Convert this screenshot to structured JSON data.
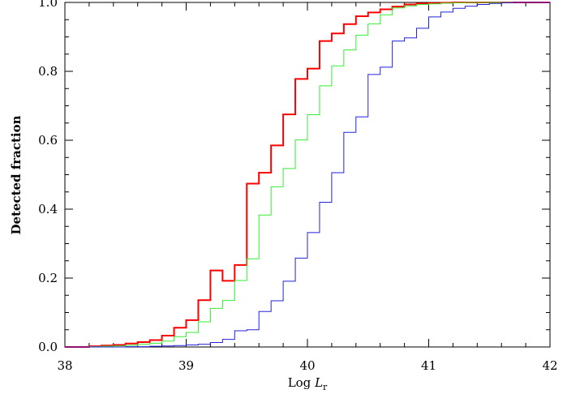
{
  "chart_data": {
    "type": "line",
    "step": true,
    "xlabel": "Log L",
    "xlabel_subscript": "r",
    "ylabel": "Detected fraction",
    "xlim": [
      38,
      42
    ],
    "ylim": [
      0,
      1
    ],
    "xticks": [
      38,
      39,
      40,
      41,
      42
    ],
    "xtick_labels": [
      "38",
      "39",
      "40",
      "41",
      "42"
    ],
    "yticks": [
      0,
      0.2,
      0.4,
      0.6,
      0.8,
      1.0
    ],
    "ytick_labels": [
      "0.0",
      "0.2",
      "0.4",
      "0.6",
      "0.8",
      "1.0"
    ],
    "grid": false,
    "bin_edges": [
      38.0,
      38.1,
      38.2,
      38.3,
      38.4,
      38.5,
      38.6,
      38.7,
      38.8,
      38.9,
      39.0,
      39.1,
      39.2,
      39.3,
      39.4,
      39.5,
      39.6,
      39.7,
      39.8,
      39.9,
      40.0,
      40.1,
      40.2,
      40.3,
      40.4,
      40.5,
      40.6,
      40.7,
      40.8,
      40.9,
      41.0,
      41.1,
      41.2,
      41.3,
      41.4,
      41.5,
      41.6,
      41.7,
      41.8,
      41.9,
      42.0
    ],
    "series": [
      {
        "color": "#ff0000",
        "width": 2,
        "values": [
          0.0,
          0.0,
          0.002,
          0.004,
          0.006,
          0.01,
          0.014,
          0.02,
          0.033,
          0.056,
          0.078,
          0.136,
          0.222,
          0.192,
          0.238,
          0.474,
          0.506,
          0.585,
          0.675,
          0.778,
          0.808,
          0.888,
          0.91,
          0.937,
          0.96,
          0.971,
          0.98,
          0.988,
          0.994,
          0.997,
          0.998,
          0.999,
          1.0,
          1.0,
          1.0,
          1.0,
          1.0,
          1.0,
          1.0,
          1.0
        ]
      },
      {
        "color": "#33ee33",
        "width": 1,
        "values": [
          0.0,
          0.0,
          0.001,
          0.002,
          0.003,
          0.005,
          0.008,
          0.011,
          0.017,
          0.03,
          0.042,
          0.073,
          0.112,
          0.135,
          0.193,
          0.256,
          0.383,
          0.465,
          0.518,
          0.601,
          0.674,
          0.758,
          0.816,
          0.862,
          0.905,
          0.938,
          0.964,
          0.984,
          0.99,
          0.994,
          0.996,
          0.998,
          0.999,
          1.0,
          1.0,
          1.0,
          1.0,
          1.0,
          1.0,
          1.0
        ]
      },
      {
        "color": "#2222dd",
        "width": 1,
        "values": [
          0.0,
          0.0,
          0.0,
          0.0,
          0.0,
          0.001,
          0.001,
          0.002,
          0.003,
          0.004,
          0.006,
          0.008,
          0.013,
          0.022,
          0.047,
          0.05,
          0.103,
          0.134,
          0.191,
          0.258,
          0.332,
          0.42,
          0.506,
          0.623,
          0.668,
          0.791,
          0.812,
          0.888,
          0.897,
          0.925,
          0.958,
          0.972,
          0.983,
          0.989,
          0.994,
          0.997,
          0.999,
          1.0,
          1.0,
          1.0
        ]
      }
    ]
  }
}
